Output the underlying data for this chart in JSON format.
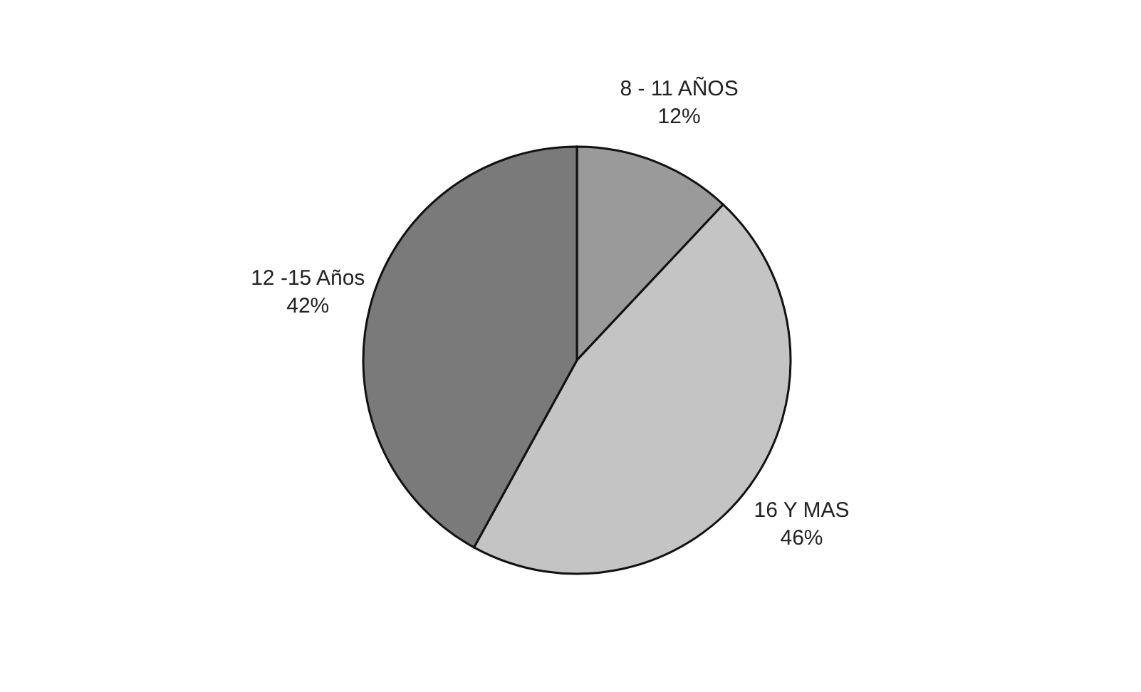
{
  "chart_data": {
    "type": "pie",
    "categories": [
      "8 - 11 AÑOS",
      "16  Y MAS",
      "12 -15 Años"
    ],
    "values": [
      12,
      46,
      42
    ],
    "value_labels": [
      "12%",
      "46%",
      "42%"
    ],
    "colors": [
      "#9a9a9a",
      "#c4c4c4",
      "#7a7a7a"
    ]
  }
}
